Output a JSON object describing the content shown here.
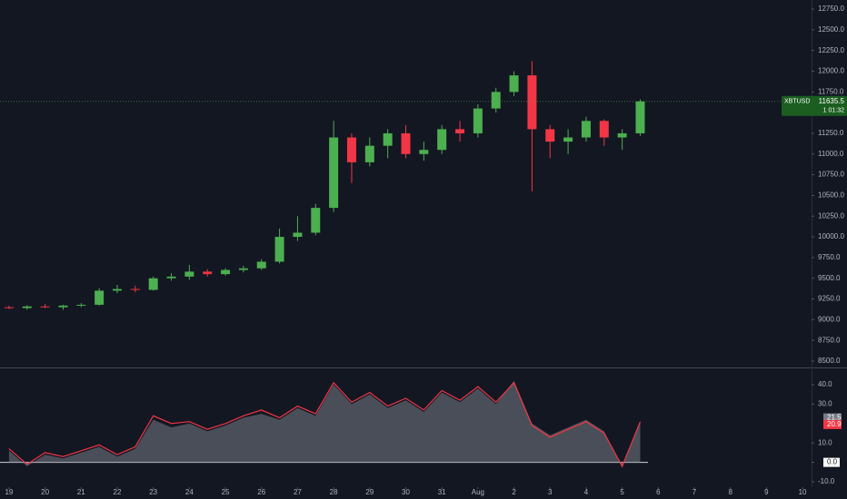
{
  "chart_data": [
    {
      "type": "candlestick",
      "symbol": "XBTUSD",
      "countdown": "1 01:32",
      "up_color": "#4caf50",
      "down_color": "#f23645",
      "x": [
        0,
        0.5,
        1,
        1.5,
        2,
        2.5,
        3,
        3.5,
        4,
        4.5,
        5,
        5.5,
        6,
        6.5,
        7,
        7.5,
        8,
        8.5,
        9,
        9.5,
        10,
        10.5,
        11,
        11.5,
        12,
        12.5,
        13,
        13.5,
        14,
        14.5,
        15,
        15.5,
        16,
        16.5,
        17,
        17.5
      ],
      "open": [
        9150,
        9140,
        9160,
        9150,
        9170,
        9180,
        9350,
        9370,
        9360,
        9500,
        9520,
        9580,
        9550,
        9600,
        9620,
        9700,
        10000,
        10050,
        10350,
        11200,
        10900,
        11100,
        11250,
        11000,
        11050,
        11300,
        11250,
        11550,
        11750,
        11950,
        11300,
        11150,
        11200,
        11400,
        11200,
        11250
      ],
      "high": [
        9170,
        9175,
        9190,
        9180,
        9200,
        9380,
        9420,
        9410,
        9520,
        9560,
        9660,
        9610,
        9620,
        9650,
        9730,
        10100,
        10250,
        10400,
        11400,
        11250,
        11200,
        11300,
        11350,
        11150,
        11350,
        11400,
        11600,
        11800,
        12000,
        12120,
        11350,
        11300,
        11450,
        11420,
        11300,
        11660
      ],
      "low": [
        9130,
        9120,
        9140,
        9120,
        9150,
        9170,
        9320,
        9330,
        9350,
        9470,
        9480,
        9520,
        9530,
        9570,
        9600,
        9680,
        9950,
        10020,
        10300,
        10650,
        10850,
        10950,
        10950,
        10920,
        11000,
        11150,
        11200,
        11500,
        11700,
        10550,
        10950,
        11000,
        11150,
        11100,
        11050,
        11220
      ],
      "close": [
        9140,
        9160,
        9150,
        9170,
        9180,
        9350,
        9370,
        9360,
        9500,
        9520,
        9580,
        9550,
        9600,
        9620,
        9700,
        10000,
        10050,
        10350,
        11200,
        10900,
        11100,
        11250,
        11000,
        11050,
        11300,
        11250,
        11550,
        11750,
        11950,
        11300,
        11150,
        11200,
        11400,
        11200,
        11250,
        11635.5
      ],
      "xlim": [
        -0.25,
        22.25
      ],
      "xticks": [
        {
          "value": 0,
          "label": "19"
        },
        {
          "value": 1,
          "label": "20"
        },
        {
          "value": 2,
          "label": "21"
        },
        {
          "value": 3,
          "label": "22"
        },
        {
          "value": 4,
          "label": "23"
        },
        {
          "value": 5,
          "label": "24"
        },
        {
          "value": 6,
          "label": "25"
        },
        {
          "value": 7,
          "label": "26"
        },
        {
          "value": 8,
          "label": "27"
        },
        {
          "value": 9,
          "label": "28"
        },
        {
          "value": 10,
          "label": "29"
        },
        {
          "value": 11,
          "label": "30"
        },
        {
          "value": 12,
          "label": "31"
        },
        {
          "value": 13,
          "label": "Aug"
        },
        {
          "value": 14,
          "label": "2"
        },
        {
          "value": 15,
          "label": "3"
        },
        {
          "value": 16,
          "label": "4"
        },
        {
          "value": 17,
          "label": "5"
        },
        {
          "value": 18,
          "label": "6"
        },
        {
          "value": 19,
          "label": "7"
        },
        {
          "value": 20,
          "label": "8"
        },
        {
          "value": 21,
          "label": "9"
        },
        {
          "value": 22,
          "label": "10"
        }
      ],
      "ylim": [
        8423,
        12860
      ],
      "yticks": [
        {
          "value": 8500,
          "label": "8500.0"
        },
        {
          "value": 8750,
          "label": "8750.0"
        },
        {
          "value": 9000,
          "label": "9000.0"
        },
        {
          "value": 9250,
          "label": "9250.0"
        },
        {
          "value": 9500,
          "label": "9500.0"
        },
        {
          "value": 9750,
          "label": "9750.0"
        },
        {
          "value": 10000,
          "label": "10000.0"
        },
        {
          "value": 10250,
          "label": "10250.0"
        },
        {
          "value": 10500,
          "label": "10500.0"
        },
        {
          "value": 10750,
          "label": "10750.0"
        },
        {
          "value": 11000,
          "label": "11000.0"
        },
        {
          "value": 11250,
          "label": "11250.0"
        },
        {
          "value": 11500,
          "label": "11500.0"
        },
        {
          "value": 11750,
          "label": "11750.0"
        },
        {
          "value": 12000,
          "label": "12000.0"
        },
        {
          "value": 12250,
          "label": "12250.0"
        },
        {
          "value": 12500,
          "label": "12500.0"
        },
        {
          "value": 12750,
          "label": "12750.0"
        }
      ]
    },
    {
      "type": "area",
      "x": [
        0,
        0.5,
        1,
        1.5,
        2,
        2.5,
        3,
        3.5,
        4,
        4.5,
        5,
        5.5,
        6,
        6.5,
        7,
        7.5,
        8,
        8.5,
        9,
        9.5,
        10,
        10.5,
        11,
        11.5,
        12,
        12.5,
        13,
        13.5,
        14,
        14.5,
        15,
        15.5,
        16,
        16.5,
        17,
        17.5
      ],
      "series": [
        {
          "color": "#787b86",
          "values": [
            6,
            -2,
            4,
            2,
            5,
            8,
            3,
            7,
            22,
            18,
            20,
            16,
            19,
            23,
            25,
            22,
            28,
            24,
            40,
            30,
            35,
            28,
            32,
            26,
            36,
            31,
            38,
            30,
            42,
            20,
            14,
            18,
            22,
            16,
            -3,
            21.5
          ]
        },
        {
          "color": "#f23645",
          "values": [
            7,
            -1,
            5,
            3,
            6,
            9,
            4,
            8,
            24,
            20,
            21,
            17,
            20,
            24,
            27,
            23,
            29,
            25,
            41,
            31,
            36,
            29,
            33,
            27,
            37,
            32,
            39,
            31,
            41,
            19,
            13,
            17,
            21,
            15,
            -2,
            20.9
          ]
        }
      ],
      "xlim": [
        -0.25,
        22.25
      ],
      "ylim": [
        -12.8,
        47.5
      ],
      "yticks": [
        {
          "value": -10,
          "label": "-10.0"
        },
        {
          "value": 0,
          "label": "0.0"
        },
        {
          "value": 10,
          "label": "10.0"
        },
        {
          "value": 30,
          "label": "30.0"
        },
        {
          "value": 40,
          "label": "40.0"
        }
      ]
    }
  ]
}
